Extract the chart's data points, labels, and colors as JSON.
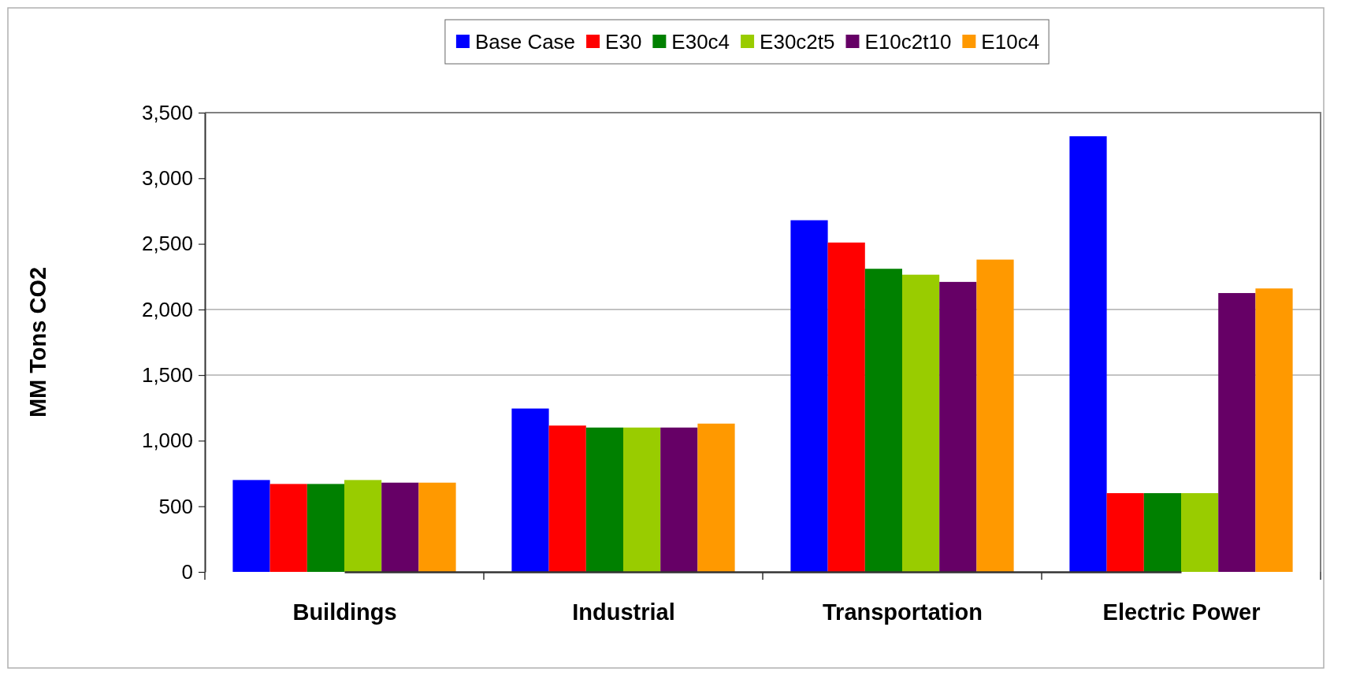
{
  "chart_data": {
    "type": "bar",
    "ylabel": "MM Tons CO2",
    "categories": [
      "Buildings",
      "Industrial",
      "Transportation",
      "Electric Power"
    ],
    "series": [
      {
        "name": "Base Case",
        "color": "#0000ff",
        "values": [
          700,
          1245,
          2680,
          3320
        ]
      },
      {
        "name": "E30",
        "color": "#ff0000",
        "values": [
          670,
          1115,
          2510,
          600
        ]
      },
      {
        "name": "E30c4",
        "color": "#008000",
        "values": [
          670,
          1100,
          2310,
          600
        ]
      },
      {
        "name": "E30c2t5",
        "color": "#99cc00",
        "values": [
          700,
          1100,
          2265,
          600
        ]
      },
      {
        "name": "E10c2t10",
        "color": "#660066",
        "values": [
          680,
          1100,
          2210,
          2125
        ]
      },
      {
        "name": "E10c4",
        "color": "#ff9900",
        "values": [
          680,
          1130,
          2380,
          2160
        ]
      }
    ],
    "ylim": [
      0,
      3500
    ],
    "yticks": [
      {
        "value": 0,
        "label": "0"
      },
      {
        "value": 500,
        "label": "500"
      },
      {
        "value": 1000,
        "label": "1,000"
      },
      {
        "value": 1500,
        "label": "1,500"
      },
      {
        "value": 2000,
        "label": "2,000"
      },
      {
        "value": 2500,
        "label": "2,500"
      },
      {
        "value": 3000,
        "label": "3,000"
      },
      {
        "value": 3500,
        "label": "3,500"
      }
    ],
    "ref_lines": [
      {
        "axis": "y",
        "value": 1500,
        "color": "#a0a0a0"
      },
      {
        "axis": "y",
        "value": 2000,
        "color": "#a0a0a0"
      }
    ],
    "legend": "top"
  }
}
